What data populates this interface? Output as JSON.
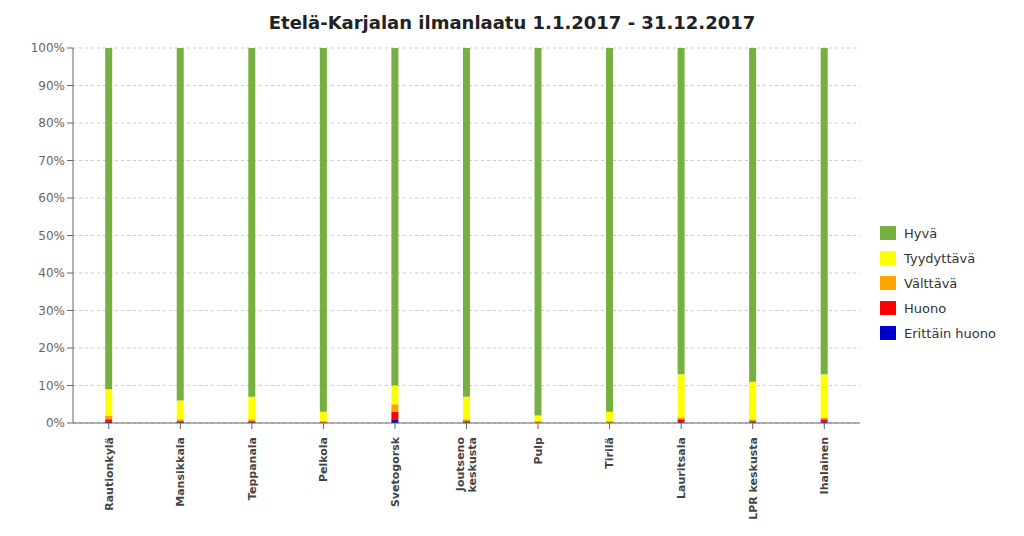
{
  "chart_data": {
    "type": "bar",
    "title": "Etelä-Karjalan ilmanlaatu 1.1.2017 - 31.12.2017",
    "stacked": true,
    "grid": true,
    "legend": "right",
    "categories": [
      "Rautionkylä",
      "Mansikkala",
      "Teppanala",
      "Pelkola",
      "Svetogorsk",
      "Joutseno\nkeskusta",
      "Pulp",
      "Tirilä",
      "Lauritsala",
      "LPR keskusta",
      "Ihalainen"
    ],
    "series": [
      {
        "name": "Erittäin huono",
        "color": "#0000cc",
        "values": [
          0.3,
          0.2,
          0.2,
          0.0,
          1.0,
          0.2,
          0.0,
          0.0,
          0.2,
          0.2,
          0.3
        ]
      },
      {
        "name": "Huono",
        "color": "#ff0000",
        "values": [
          0.7,
          0.3,
          0.3,
          0.2,
          2.0,
          0.3,
          0.2,
          0.2,
          0.8,
          0.3,
          0.7
        ]
      },
      {
        "name": "Välttävä",
        "color": "#ffa500",
        "values": [
          1.0,
          0.5,
          0.5,
          0.3,
          2.0,
          0.5,
          0.3,
          0.3,
          0.5,
          0.5,
          0.5
        ]
      },
      {
        "name": "Tyydyttävä",
        "color": "#ffff00",
        "values": [
          7.0,
          5.0,
          6.0,
          2.5,
          5.0,
          6.0,
          1.5,
          2.5,
          11.5,
          10.0,
          11.5
        ]
      },
      {
        "name": "Hyvä",
        "color": "#76b041",
        "values": [
          91.0,
          94.0,
          93.0,
          97.0,
          90.0,
          93.0,
          98.0,
          97.0,
          87.0,
          89.0,
          87.0
        ]
      }
    ],
    "ylim": [
      0,
      100
    ],
    "yticks": [
      {
        "value": 0,
        "label": "0%"
      },
      {
        "value": 10,
        "label": "10%"
      },
      {
        "value": 20,
        "label": "20%"
      },
      {
        "value": 30,
        "label": "30%"
      },
      {
        "value": 40,
        "label": "40%"
      },
      {
        "value": 50,
        "label": "50%"
      },
      {
        "value": 60,
        "label": "60%"
      },
      {
        "value": 70,
        "label": "70%"
      },
      {
        "value": 80,
        "label": "80%"
      },
      {
        "value": 90,
        "label": "90%"
      },
      {
        "value": 100,
        "label": "100%"
      }
    ]
  }
}
